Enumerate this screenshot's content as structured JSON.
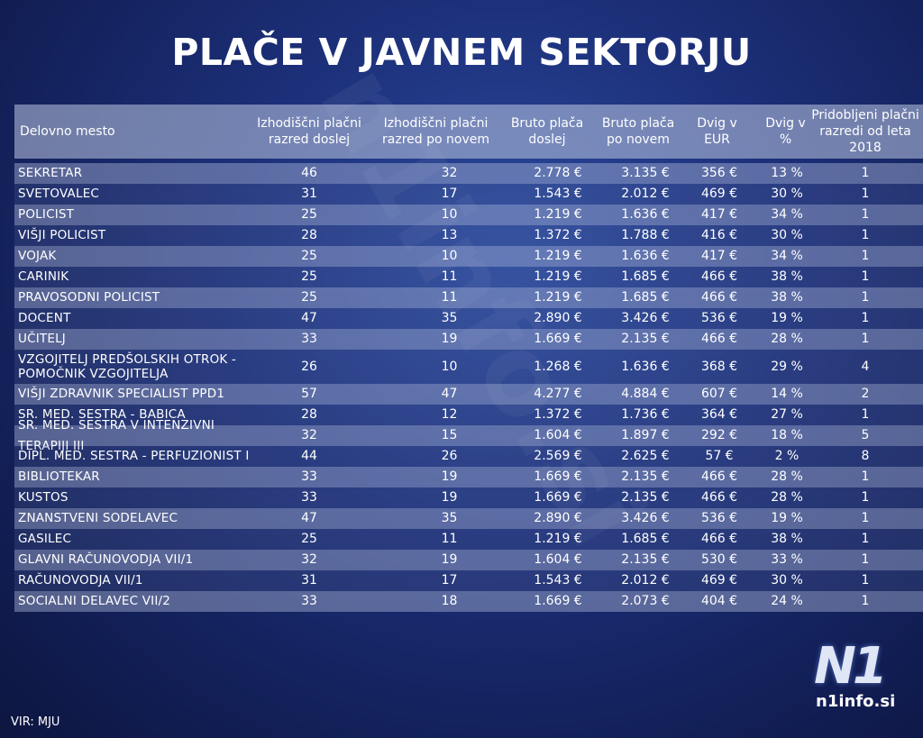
{
  "title": "PLAČE V JAVNEM SEKTORJU",
  "table": {
    "headers": [
      "Delovno mesto",
      "Izhodiščni plačni razred doslej",
      "Izhodiščni plačni razred po novem",
      "Bruto plača doslej",
      "Bruto plača po novem",
      "Dvig v EUR",
      "Dvig v %",
      "Pridobljeni plačni razredi od leta 2018"
    ],
    "rows": [
      [
        "SEKRETAR",
        "46",
        "32",
        "2.778 €",
        "3.135 €",
        "356 €",
        "13 %",
        "1"
      ],
      [
        "SVETOVALEC",
        "31",
        "17",
        "1.543 €",
        "2.012 €",
        "469 €",
        "30 %",
        "1"
      ],
      [
        "POLICIST",
        "25",
        "10",
        "1.219 €",
        "1.636 €",
        "417 €",
        "34 %",
        "1"
      ],
      [
        "VIŠJI POLICIST",
        "28",
        "13",
        "1.372 €",
        "1.788 €",
        "416 €",
        "30 %",
        "1"
      ],
      [
        "VOJAK",
        "25",
        "10",
        "1.219 €",
        "1.636 €",
        "417 €",
        "34 %",
        "1"
      ],
      [
        "CARINIK",
        "25",
        "11",
        "1.219 €",
        "1.685 €",
        "466 €",
        "38 %",
        "1"
      ],
      [
        "PRAVOSODNI POLICIST",
        "25",
        "11",
        "1.219 €",
        "1.685 €",
        "466 €",
        "38 %",
        "1"
      ],
      [
        "DOCENT",
        "47",
        "35",
        "2.890 €",
        "3.426 €",
        "536 €",
        "19 %",
        "1"
      ],
      [
        "UČITELJ",
        "33",
        "19",
        "1.669 €",
        "2.135 €",
        "466 €",
        "28 %",
        "1"
      ],
      [
        "VZGOJITELJ PREDŠOLSKIH OTROK - POMOČNIK VZGOJITELJA",
        "26",
        "10",
        "1.268 €",
        "1.636 €",
        "368 €",
        "29 %",
        "4"
      ],
      [
        "VIŠJI ZDRAVNIK SPECIALIST PPD1",
        "57",
        "47",
        "4.277 €",
        "4.884 €",
        "607 €",
        "14 %",
        "2"
      ],
      [
        "SR. MED. SESTRA - BABICA",
        "28",
        "12",
        "1.372 €",
        "1.736 €",
        "364 €",
        "27 %",
        "1"
      ],
      [
        "SR. MED. SESTRA V INTENZIVNI TERAPIJI III",
        "32",
        "15",
        "1.604 €",
        "1.897 €",
        "292 €",
        "18 %",
        "5"
      ],
      [
        "DIPL. MED. SESTRA - PERFUZIONIST I",
        "44",
        "26",
        "2.569 €",
        "2.625 €",
        "57 €",
        "2 %",
        "8"
      ],
      [
        "BIBLIOTEKAR",
        "33",
        "19",
        "1.669 €",
        "2.135 €",
        "466 €",
        "28 %",
        "1"
      ],
      [
        "KUSTOS",
        "33",
        "19",
        "1.669 €",
        "2.135 €",
        "466 €",
        "28 %",
        "1"
      ],
      [
        "ZNANSTVENI SODELAVEC",
        "47",
        "35",
        "2.890 €",
        "3.426 €",
        "536 €",
        "19 %",
        "1"
      ],
      [
        "GASILEC",
        "25",
        "11",
        "1.219 €",
        "1.685 €",
        "466 €",
        "38 %",
        "1"
      ],
      [
        "GLAVNI RAČUNOVODJA VII/1",
        "32",
        "19",
        "1.604 €",
        "2.135 €",
        "530 €",
        "33 %",
        "1"
      ],
      [
        "RAČUNOVODJA VII/1",
        "31",
        "17",
        "1.543 €",
        "2.012 €",
        "469 €",
        "30 %",
        "1"
      ],
      [
        "SOCIALNI DELAVEC VII/2",
        "33",
        "18",
        "1.669 €",
        "2.073 €",
        "404 €",
        "24 %",
        "1"
      ]
    ]
  },
  "source": "VIR: MJU",
  "logo": {
    "mark": "N1",
    "site": "n1info.si"
  },
  "watermark": "n1info.si",
  "colors": {
    "background": "#1c2f78",
    "text": "#ffffff"
  }
}
